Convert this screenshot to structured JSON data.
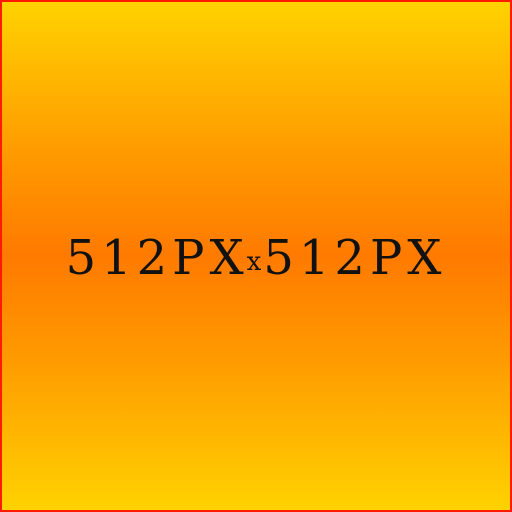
{
  "image": {
    "width_text": "512PX",
    "separator": "x",
    "height_text": "512PX"
  }
}
